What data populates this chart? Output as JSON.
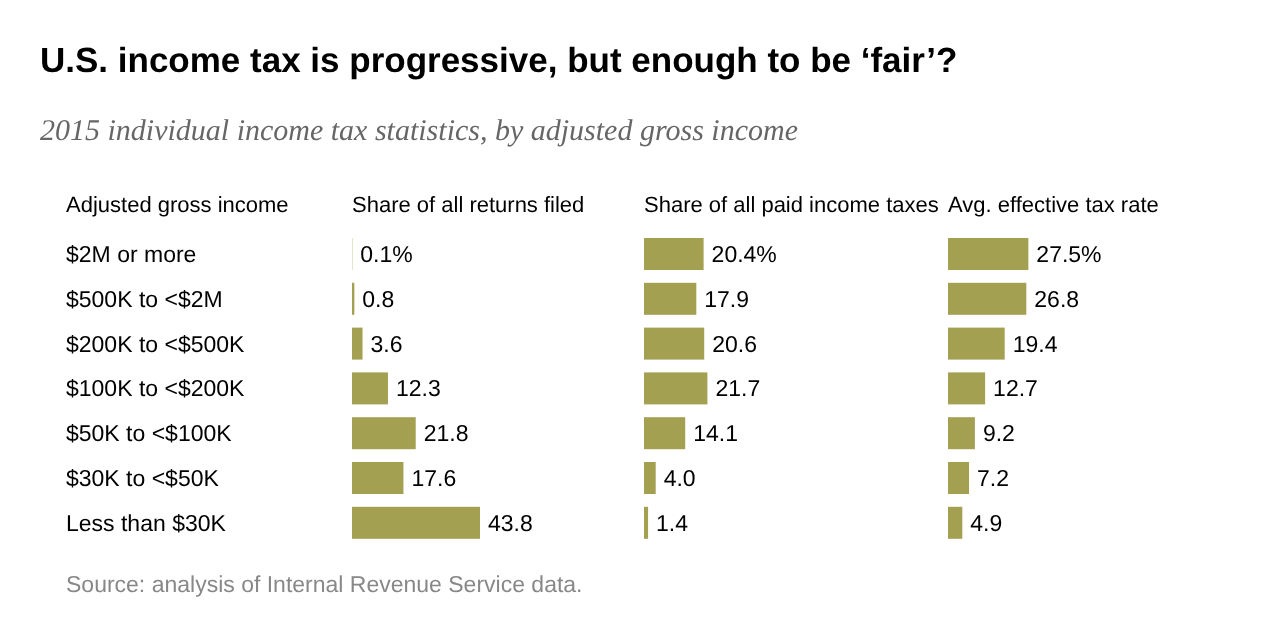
{
  "chart_data": [
    {
      "type": "bar",
      "orientation": "horizontal",
      "title": "U.S. income tax is progressive, but enough to be ‘fair’?",
      "subtitle": "2015 individual income tax statistics, by adjusted gross income",
      "ylabel": "Adjusted gross income",
      "xlabel": "Share of all returns filed",
      "categories": [
        "$2M or more",
        "$500K to <$2M",
        "$200K to <$500K",
        "$100K to <$200K",
        "$50K to <$100K",
        "$30K to <$50K",
        "Less than $30K"
      ],
      "values": [
        0.1,
        0.8,
        3.6,
        12.3,
        21.8,
        17.6,
        43.8
      ],
      "value_labels": [
        "0.1%",
        "0.8",
        "3.6",
        "12.3",
        "21.8",
        "17.6",
        "43.8"
      ],
      "color": "#a3a052",
      "tick_labels": "y",
      "annotations": [
        "Source: analysis of Internal Revenue Service data."
      ]
    },
    {
      "type": "bar",
      "orientation": "horizontal",
      "xlabel": "Share of all paid income taxes",
      "values": [
        20.4,
        17.9,
        20.6,
        21.7,
        14.1,
        4.0,
        1.4
      ],
      "value_labels": [
        "20.4%",
        "17.9",
        "20.6",
        "21.7",
        "14.1",
        "4.0",
        "1.4"
      ],
      "color": "#a3a052",
      "tick_labels": false
    },
    {
      "type": "bar",
      "orientation": "horizontal",
      "xlabel": "Avg. effective tax rate",
      "values": [
        27.5,
        26.8,
        19.4,
        12.7,
        9.2,
        7.2,
        4.9
      ],
      "value_labels": [
        "27.5%",
        "26.8",
        "19.4",
        "12.7",
        "9.2",
        "7.2",
        "4.9"
      ],
      "color": "#a3a052",
      "tick_labels": false
    }
  ]
}
